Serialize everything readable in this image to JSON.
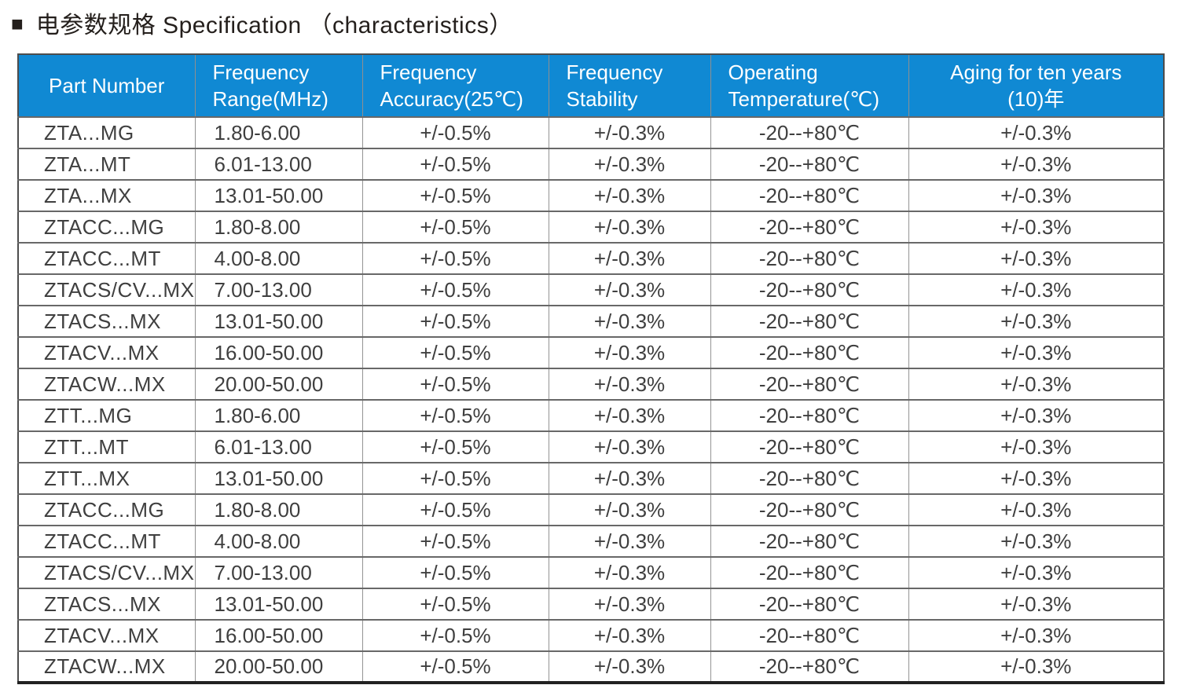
{
  "title": {
    "bullet": "■",
    "text": "电参数规格 Specification （characteristics）"
  },
  "colors": {
    "header_bg": "#1089D3",
    "header_text": "#FFFFFF",
    "body_text": "#3F3F3F",
    "grid_line": "#686868"
  },
  "table": {
    "headers": [
      "Part Number",
      "Frequency\nRange(MHz)",
      "Frequency\nAccuracy(25℃)",
      "Frequency\nStability",
      "Operating\nTemperature(℃)",
      "Aging for ten years\n(10)年"
    ],
    "rows": [
      [
        "ZTA...MG",
        "1.80-6.00",
        "+/-0.5%",
        "+/-0.3%",
        "-20--+80℃",
        "+/-0.3%"
      ],
      [
        "ZTA...MT",
        "6.01-13.00",
        "+/-0.5%",
        "+/-0.3%",
        "-20--+80℃",
        "+/-0.3%"
      ],
      [
        "ZTA...MX",
        "13.01-50.00",
        "+/-0.5%",
        "+/-0.3%",
        "-20--+80℃",
        "+/-0.3%"
      ],
      [
        "ZTACC...MG",
        "1.80-8.00",
        "+/-0.5%",
        "+/-0.3%",
        "-20--+80℃",
        "+/-0.3%"
      ],
      [
        "ZTACC...MT",
        "4.00-8.00",
        "+/-0.5%",
        "+/-0.3%",
        "-20--+80℃",
        "+/-0.3%"
      ],
      [
        "ZTACS/CV...MX",
        "7.00-13.00",
        "+/-0.5%",
        "+/-0.3%",
        "-20--+80℃",
        "+/-0.3%"
      ],
      [
        "ZTACS...MX",
        "13.01-50.00",
        "+/-0.5%",
        "+/-0.3%",
        "-20--+80℃",
        "+/-0.3%"
      ],
      [
        "ZTACV...MX",
        "16.00-50.00",
        "+/-0.5%",
        "+/-0.3%",
        "-20--+80℃",
        "+/-0.3%"
      ],
      [
        "ZTACW...MX",
        "20.00-50.00",
        "+/-0.5%",
        "+/-0.3%",
        "-20--+80℃",
        "+/-0.3%"
      ],
      [
        "ZTT...MG",
        "1.80-6.00",
        "+/-0.5%",
        "+/-0.3%",
        "-20--+80℃",
        "+/-0.3%"
      ],
      [
        "ZTT...MT",
        "6.01-13.00",
        "+/-0.5%",
        "+/-0.3%",
        "-20--+80℃",
        "+/-0.3%"
      ],
      [
        "ZTT...MX",
        "13.01-50.00",
        "+/-0.5%",
        "+/-0.3%",
        "-20--+80℃",
        "+/-0.3%"
      ],
      [
        "ZTACC...MG",
        "1.80-8.00",
        "+/-0.5%",
        "+/-0.3%",
        "-20--+80℃",
        "+/-0.3%"
      ],
      [
        "ZTACC...MT",
        "4.00-8.00",
        "+/-0.5%",
        "+/-0.3%",
        "-20--+80℃",
        "+/-0.3%"
      ],
      [
        "ZTACS/CV...MX",
        "7.00-13.00",
        "+/-0.5%",
        "+/-0.3%",
        "-20--+80℃",
        "+/-0.3%"
      ],
      [
        "ZTACS...MX",
        "13.01-50.00",
        "+/-0.5%",
        "+/-0.3%",
        "-20--+80℃",
        "+/-0.3%"
      ],
      [
        "ZTACV...MX",
        "16.00-50.00",
        "+/-0.5%",
        "+/-0.3%",
        "-20--+80℃",
        "+/-0.3%"
      ],
      [
        "ZTACW...MX",
        "20.00-50.00",
        "+/-0.5%",
        "+/-0.3%",
        "-20--+80℃",
        "+/-0.3%"
      ]
    ]
  }
}
